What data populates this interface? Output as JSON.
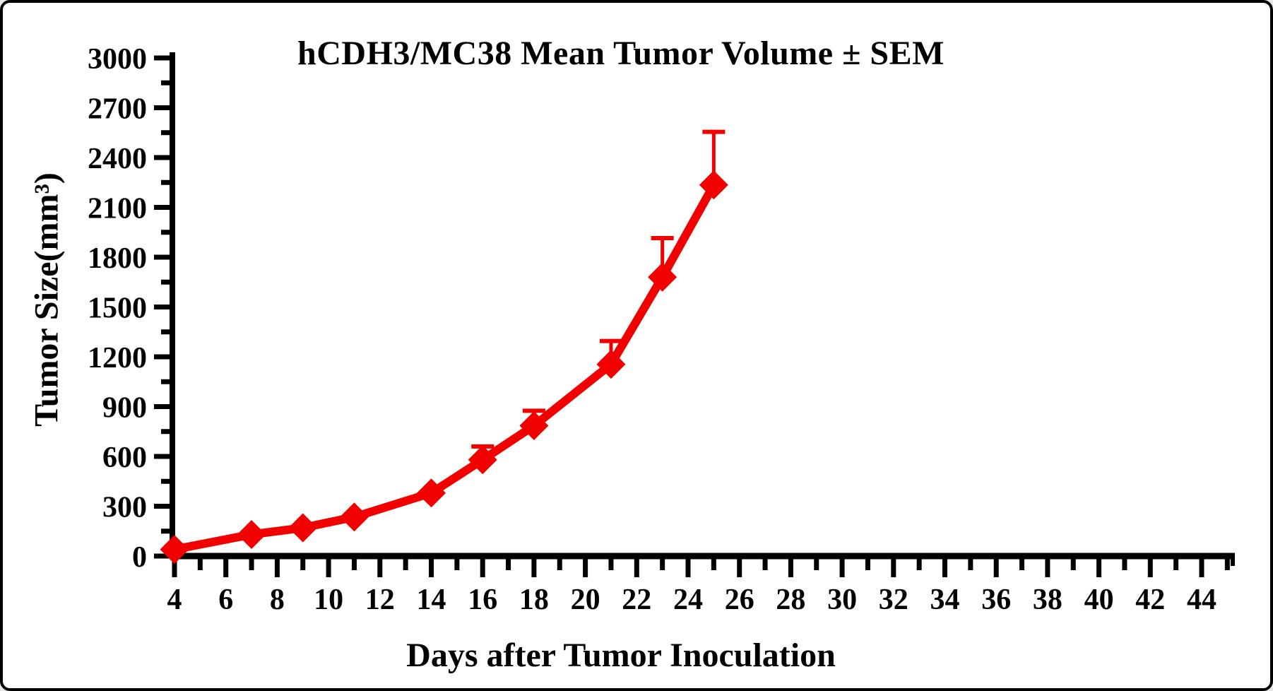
{
  "chart_data": {
    "type": "line",
    "title": "hCDH3/MC38 Mean Tumor Volume ± SEM",
    "xlabel": "Days after Tumor Inoculation",
    "ylabel": "Tumor Size(mm³)",
    "grid": false,
    "legend": "none",
    "axis_color": "#000000",
    "x_axis": {
      "min": 4,
      "max": 44,
      "major_tick_step": 2,
      "minor_tick_step": 1,
      "tick_labels": [
        "4",
        "6",
        "8",
        "10",
        "12",
        "14",
        "16",
        "18",
        "20",
        "22",
        "24",
        "26",
        "28",
        "30",
        "32",
        "34",
        "36",
        "38",
        "40",
        "42",
        "44"
      ]
    },
    "y_axis": {
      "min": 0,
      "max": 3000,
      "major_tick_step": 300,
      "minor_tick_step": 150,
      "tick_labels": [
        "0",
        "300",
        "600",
        "900",
        "1200",
        "1500",
        "1800",
        "2100",
        "2400",
        "2700",
        "3000"
      ]
    },
    "series": [
      {
        "name": "hCDH3/MC38",
        "color": "#F20000",
        "marker": "diamond",
        "error_bars": "upper-only",
        "x": [
          4,
          7,
          9,
          11,
          14,
          16,
          18,
          21,
          23,
          25
        ],
        "y": [
          40,
          130,
          170,
          235,
          380,
          580,
          785,
          1155,
          1680,
          2235
        ],
        "sem_upper": [
          0,
          0,
          0,
          0,
          0,
          80,
          90,
          140,
          235,
          320
        ]
      }
    ]
  }
}
